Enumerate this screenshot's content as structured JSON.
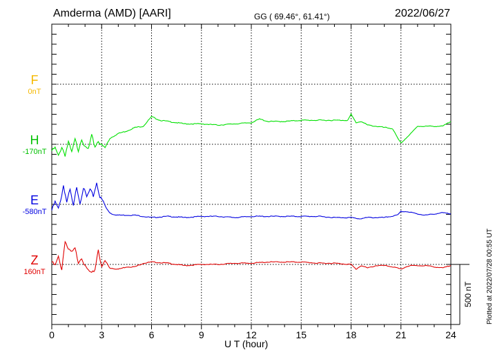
{
  "header": {
    "title": "Amderma (AMD)  [AARI]",
    "coords": "GG ( 69.46°,  61.41°)",
    "date": "2022/06/27"
  },
  "footer": {
    "plotted": "Plotted at 2022/07/28 00:55 UT",
    "scale_label": "500 nT"
  },
  "chart_data": {
    "type": "line",
    "xlabel": "U T (hour)",
    "xlim": [
      0,
      24
    ],
    "xticks": [
      "0",
      "3",
      "6",
      "9",
      "12",
      "15",
      "18",
      "21",
      "24"
    ],
    "scale_bar_nT": 500,
    "grid": true,
    "series": [
      {
        "name": "F",
        "baseline": "0nT",
        "color": "#f5b800",
        "x": [],
        "y": []
      },
      {
        "name": "H",
        "baseline": "-170nT",
        "color": "#00e000",
        "x": [
          0,
          0.2,
          0.4,
          0.6,
          0.8,
          1.0,
          1.2,
          1.4,
          1.6,
          1.8,
          2.0,
          2.2,
          2.4,
          2.6,
          2.8,
          3.0,
          3.2,
          3.5,
          4.0,
          4.5,
          5.0,
          5.5,
          6.0,
          6.5,
          7.0,
          7.5,
          8.0,
          9.0,
          10.0,
          11.0,
          12.0,
          12.5,
          13.0,
          14.0,
          15.0,
          16.0,
          17.0,
          17.8,
          18.0,
          18.3,
          18.6,
          19.0,
          19.5,
          20.0,
          20.5,
          20.8,
          21.0,
          21.3,
          21.6,
          22.0,
          22.5,
          23.0,
          23.5,
          24.0
        ],
        "y": [
          -225,
          -200,
          -270,
          -190,
          -260,
          -150,
          -240,
          -130,
          -220,
          -120,
          -200,
          -210,
          -100,
          -190,
          -140,
          -180,
          -200,
          -120,
          -80,
          -60,
          -30,
          -20,
          60,
          30,
          20,
          10,
          0,
          0,
          -10,
          0,
          10,
          40,
          20,
          20,
          30,
          30,
          30,
          30,
          80,
          10,
          20,
          -10,
          -20,
          -30,
          -40,
          -120,
          -160,
          -120,
          -80,
          -20,
          -20,
          -20,
          -20,
          20
        ]
      },
      {
        "name": "E",
        "baseline": "-580nT",
        "color": "#0000e0",
        "x": [
          0,
          0.2,
          0.4,
          0.6,
          0.7,
          0.9,
          1.1,
          1.3,
          1.5,
          1.7,
          1.9,
          2.1,
          2.3,
          2.5,
          2.7,
          2.9,
          3.1,
          3.3,
          3.6,
          4.0,
          5.0,
          6.0,
          7.0,
          8.0,
          9.0,
          10.0,
          11.0,
          12.0,
          13.0,
          14.0,
          15.0,
          16.0,
          17.0,
          18.0,
          18.5,
          19.0,
          20.0,
          20.8,
          21.0,
          21.3,
          21.7,
          22.0,
          22.5,
          23.0,
          23.5,
          24.0
        ],
        "y": [
          -630,
          -560,
          -620,
          -500,
          -420,
          -560,
          -460,
          -600,
          -430,
          -570,
          -440,
          -520,
          -460,
          -510,
          -400,
          -520,
          -560,
          -620,
          -660,
          -670,
          -670,
          -690,
          -680,
          -690,
          -680,
          -680,
          -690,
          -680,
          -680,
          -680,
          -680,
          -680,
          -690,
          -690,
          -700,
          -690,
          -690,
          -670,
          -640,
          -640,
          -650,
          -660,
          -670,
          -660,
          -650,
          -660
        ]
      },
      {
        "name": "Z",
        "baseline": "160nT",
        "color": "#e00000",
        "x": [
          0,
          0.2,
          0.4,
          0.6,
          0.8,
          1.0,
          1.2,
          1.4,
          1.6,
          1.8,
          2.0,
          2.2,
          2.4,
          2.6,
          2.8,
          3.0,
          3.2,
          3.5,
          4.0,
          4.5,
          5.0,
          5.5,
          6.0,
          7.0,
          8.0,
          9.0,
          10.0,
          11.0,
          12.0,
          13.0,
          14.0,
          15.0,
          16.0,
          17.0,
          18.0,
          18.3,
          18.6,
          19.0,
          19.5,
          20.0,
          20.5,
          21.0,
          21.3,
          21.6,
          22.0,
          22.5,
          23.0,
          23.5,
          24.0
        ],
        "y": [
          180,
          150,
          220,
          120,
          360,
          280,
          260,
          290,
          180,
          220,
          140,
          110,
          80,
          120,
          290,
          130,
          190,
          130,
          120,
          140,
          140,
          170,
          180,
          170,
          150,
          160,
          160,
          170,
          170,
          180,
          180,
          180,
          170,
          170,
          160,
          120,
          150,
          130,
          150,
          150,
          140,
          120,
          140,
          150,
          150,
          150,
          140,
          130,
          150
        ]
      }
    ]
  }
}
